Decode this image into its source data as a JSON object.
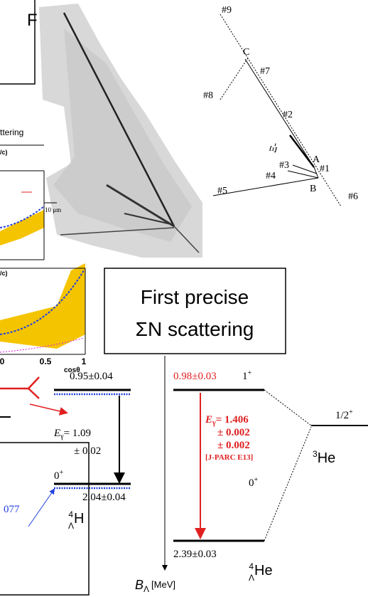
{
  "top_box": {
    "text": "F"
  },
  "emulsion": {
    "scale_bar": "10 μm",
    "labels": [
      "#9",
      "C",
      "#7",
      "#8",
      "#2",
      "Ξ-",
      "A",
      "#3",
      "#1",
      "#4",
      "B",
      "#5",
      "#6"
    ]
  },
  "plot": {
    "title_fragment": "ttering",
    "unit_fragments": [
      "/c)",
      "/c)"
    ],
    "x_axis": {
      "title": "cosθ",
      "ticks": [
        0,
        0.5,
        1
      ]
    }
  },
  "callout": {
    "lines": [
      "First precise",
      "ΣN scattering"
    ]
  },
  "level_scheme": {
    "axis_label": {
      "symbol": "B",
      "sub": "Λ",
      "unit": "[MeV]"
    },
    "h4": {
      "excited_energy": "0.95±0.04",
      "gamma": {
        "label": "E",
        "sub": "γ",
        "value": "= 1.09",
        "error": "± 0.02"
      },
      "ground_spin": {
        "j": "0",
        "parity": "+"
      },
      "ground_energy": "2.04±0.04",
      "side_value": "077",
      "name": {
        "mass": "4",
        "sub": "Λ",
        "element": "H"
      }
    },
    "he4": {
      "excited_energy": "0.98±0.03",
      "excited_spin": {
        "j": "1",
        "parity": "+"
      },
      "gamma": {
        "label": "E",
        "sub": "γ",
        "value": "= 1.406",
        "errors": [
          "± 0.002",
          "± 0.002"
        ],
        "experiment": "[J-PARC E13]"
      },
      "ground_spin": {
        "j": "0",
        "parity": "+"
      },
      "ground_energy": "2.39±0.03",
      "name": {
        "mass": "4",
        "sub": "Λ",
        "element": "He"
      }
    },
    "he3": {
      "spin": {
        "j": "1/2",
        "parity": "+"
      },
      "name": {
        "mass": "3",
        "element": "He"
      }
    }
  }
}
